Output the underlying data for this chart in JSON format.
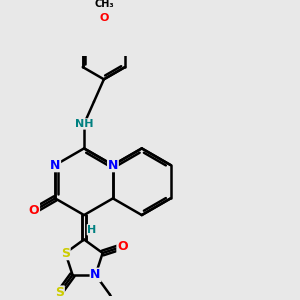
{
  "bg_color": "#e8e8e8",
  "atom_colors": {
    "C": "#000000",
    "N": "#0000ff",
    "O": "#ff0000",
    "S": "#cccc00",
    "H": "#008080"
  },
  "bond_color": "#000000",
  "bond_width": 1.8,
  "figsize": [
    3.0,
    3.0
  ],
  "dpi": 100
}
